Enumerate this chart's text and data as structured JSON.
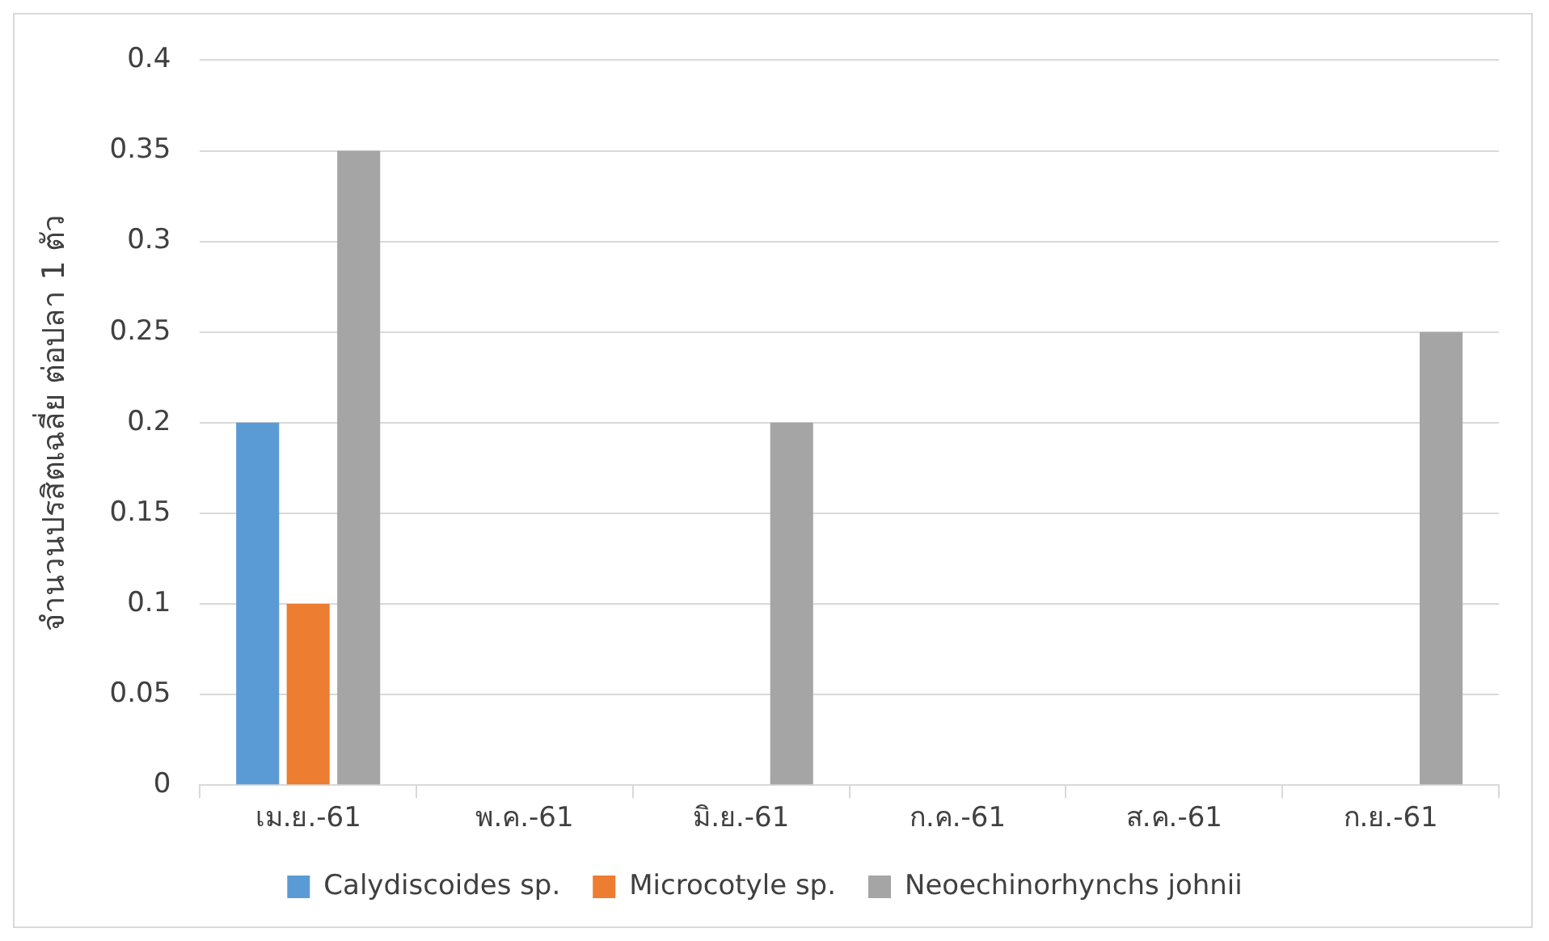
{
  "chart_data": {
    "type": "bar",
    "ylabel": "จำนวนปรสิตเฉลี่ย ต่อปลา 1 ตัว",
    "categories": [
      "เม.ย.-61",
      "พ.ค.-61",
      "มิ.ย.-61",
      "ก.ค.-61",
      "ส.ค.-61",
      "ก.ย.-61"
    ],
    "series": [
      {
        "name": "Calydiscoides sp.",
        "color": "#5b9bd5",
        "values": [
          0.2,
          0,
          0,
          0,
          0,
          0
        ]
      },
      {
        "name": "Microcotyle sp.",
        "color": "#ed7d31",
        "values": [
          0.1,
          0,
          0,
          0,
          0,
          0
        ]
      },
      {
        "name": "Neoechinorhynchs johnii",
        "color": "#a5a5a5",
        "values": [
          0.35,
          0,
          0.2,
          0,
          0,
          0.25
        ]
      }
    ],
    "ylim": [
      0,
      0.4
    ],
    "yticks": [
      0,
      0.05,
      0.1,
      0.15,
      0.2,
      0.25,
      0.3,
      0.35,
      0.4
    ],
    "grid": "y",
    "legend": "bottom"
  }
}
